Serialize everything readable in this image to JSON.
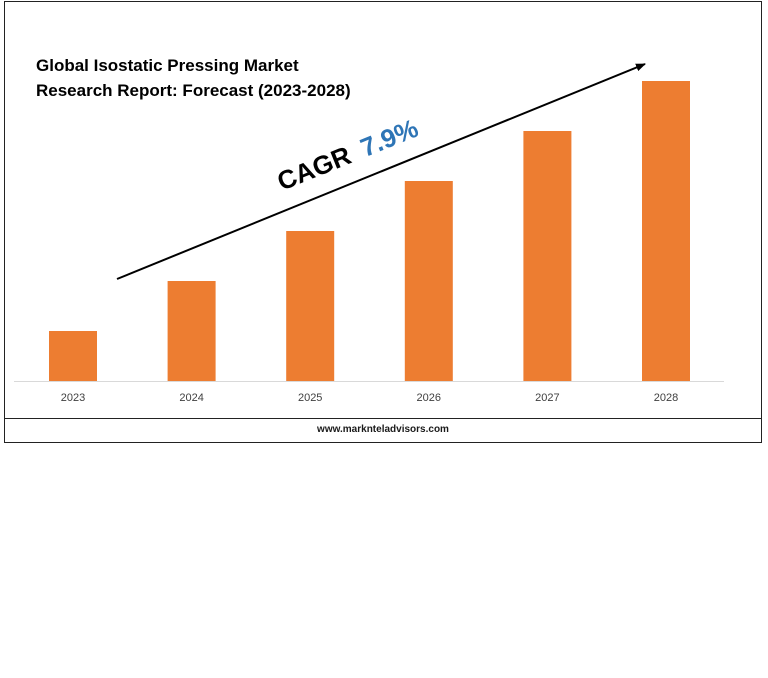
{
  "chart_data": {
    "type": "bar",
    "title_lines": [
      "Global Isostatic Pressing Market",
      "Research Report: Forecast (2023-2028)"
    ],
    "categories": [
      "2023",
      "2024",
      "2025",
      "2026",
      "2027",
      "2028"
    ],
    "values": [
      1,
      2,
      3,
      4,
      5,
      6
    ],
    "bar_color": "#ED7D31",
    "value_axis_visible": false,
    "grid": false,
    "legend": "none",
    "annotation": {
      "label": "CAGR",
      "value": "7.9%",
      "label_color": "#000000",
      "value_color": "#2E75B6",
      "style": "rising trend arrow"
    }
  },
  "footer": {
    "website": "www.marknteladvisors.com"
  }
}
